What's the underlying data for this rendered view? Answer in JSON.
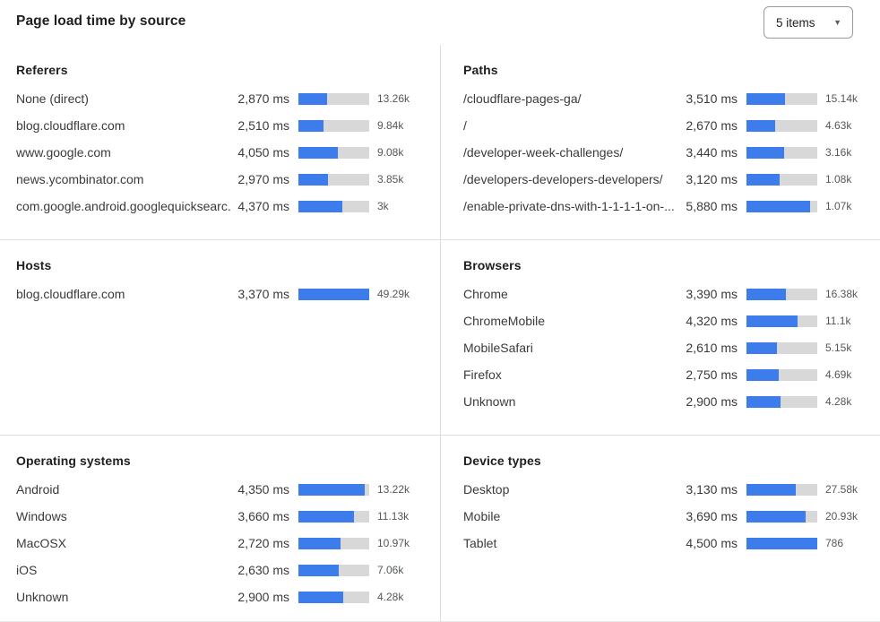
{
  "header": {
    "title": "Page load time by source",
    "items_select": {
      "value": "5 items"
    }
  },
  "colors": {
    "bar_fill": "#3c7ceb",
    "bar_track": "#d8d8d8",
    "divider": "#dcdee0"
  },
  "panels": [
    {
      "title": "Referers",
      "rows": [
        {
          "label": "None (direct)",
          "ms": "2,870 ms",
          "count": "13.26k",
          "pct": 41
        },
        {
          "label": "blog.cloudflare.com",
          "ms": "2,510 ms",
          "count": "9.84k",
          "pct": 35
        },
        {
          "label": "www.google.com",
          "ms": "4,050 ms",
          "count": "9.08k",
          "pct": 56
        },
        {
          "label": "news.ycombinator.com",
          "ms": "2,970 ms",
          "count": "3.85k",
          "pct": 42
        },
        {
          "label": "com.google.android.googlequicksearc...",
          "ms": "4,370 ms",
          "count": "3k",
          "pct": 62
        }
      ]
    },
    {
      "title": "Paths",
      "rows": [
        {
          "label": "/cloudflare-pages-ga/",
          "ms": "3,510 ms",
          "count": "15.14k",
          "pct": 54
        },
        {
          "label": "/",
          "ms": "2,670 ms",
          "count": "4.63k",
          "pct": 41
        },
        {
          "label": "/developer-week-challenges/",
          "ms": "3,440 ms",
          "count": "3.16k",
          "pct": 53
        },
        {
          "label": "/developers-developers-developers/",
          "ms": "3,120 ms",
          "count": "1.08k",
          "pct": 47
        },
        {
          "label": "/enable-private-dns-with-1-1-1-1-on-...",
          "ms": "5,880 ms",
          "count": "1.07k",
          "pct": 90
        }
      ]
    },
    {
      "title": "Hosts",
      "rows": [
        {
          "label": "blog.cloudflare.com",
          "ms": "3,370 ms",
          "count": "49.29k",
          "pct": 100
        }
      ]
    },
    {
      "title": "Browsers",
      "rows": [
        {
          "label": "Chrome",
          "ms": "3,390 ms",
          "count": "16.38k",
          "pct": 56
        },
        {
          "label": "ChromeMobile",
          "ms": "4,320 ms",
          "count": "11.1k",
          "pct": 72
        },
        {
          "label": "MobileSafari",
          "ms": "2,610 ms",
          "count": "5.15k",
          "pct": 43
        },
        {
          "label": "Firefox",
          "ms": "2,750 ms",
          "count": "4.69k",
          "pct": 46
        },
        {
          "label": "Unknown",
          "ms": "2,900 ms",
          "count": "4.28k",
          "pct": 48
        }
      ]
    },
    {
      "title": "Operating systems",
      "rows": [
        {
          "label": "Android",
          "ms": "4,350 ms",
          "count": "13.22k",
          "pct": 94
        },
        {
          "label": "Windows",
          "ms": "3,660 ms",
          "count": "11.13k",
          "pct": 79
        },
        {
          "label": "MacOSX",
          "ms": "2,720 ms",
          "count": "10.97k",
          "pct": 59
        },
        {
          "label": "iOS",
          "ms": "2,630 ms",
          "count": "7.06k",
          "pct": 57
        },
        {
          "label": "Unknown",
          "ms": "2,900 ms",
          "count": "4.28k",
          "pct": 63
        }
      ]
    },
    {
      "title": "Device types",
      "rows": [
        {
          "label": "Desktop",
          "ms": "3,130 ms",
          "count": "27.58k",
          "pct": 70
        },
        {
          "label": "Mobile",
          "ms": "3,690 ms",
          "count": "20.93k",
          "pct": 83
        },
        {
          "label": "Tablet",
          "ms": "4,500 ms",
          "count": "786",
          "pct": 100
        }
      ]
    }
  ],
  "chart_data": [
    {
      "type": "bar",
      "title": "Referers",
      "categories": [
        "None (direct)",
        "blog.cloudflare.com",
        "www.google.com",
        "news.ycombinator.com",
        "com.google.android.googlequicksearc..."
      ],
      "series": [
        {
          "name": "page_load_time_ms",
          "values": [
            2870,
            2510,
            4050,
            2970,
            4370
          ]
        },
        {
          "name": "count",
          "values": [
            13260,
            9840,
            9080,
            3850,
            3000
          ]
        }
      ]
    },
    {
      "type": "bar",
      "title": "Paths",
      "categories": [
        "/cloudflare-pages-ga/",
        "/",
        "/developer-week-challenges/",
        "/developers-developers-developers/",
        "/enable-private-dns-with-1-1-1-1-on-..."
      ],
      "series": [
        {
          "name": "page_load_time_ms",
          "values": [
            3510,
            2670,
            3440,
            3120,
            5880
          ]
        },
        {
          "name": "count",
          "values": [
            15140,
            4630,
            3160,
            1080,
            1070
          ]
        }
      ]
    },
    {
      "type": "bar",
      "title": "Hosts",
      "categories": [
        "blog.cloudflare.com"
      ],
      "series": [
        {
          "name": "page_load_time_ms",
          "values": [
            3370
          ]
        },
        {
          "name": "count",
          "values": [
            49290
          ]
        }
      ]
    },
    {
      "type": "bar",
      "title": "Browsers",
      "categories": [
        "Chrome",
        "ChromeMobile",
        "MobileSafari",
        "Firefox",
        "Unknown"
      ],
      "series": [
        {
          "name": "page_load_time_ms",
          "values": [
            3390,
            4320,
            2610,
            2750,
            2900
          ]
        },
        {
          "name": "count",
          "values": [
            16380,
            11100,
            5150,
            4690,
            4280
          ]
        }
      ]
    },
    {
      "type": "bar",
      "title": "Operating systems",
      "categories": [
        "Android",
        "Windows",
        "MacOSX",
        "iOS",
        "Unknown"
      ],
      "series": [
        {
          "name": "page_load_time_ms",
          "values": [
            4350,
            3660,
            2720,
            2630,
            2900
          ]
        },
        {
          "name": "count",
          "values": [
            13220,
            11130,
            10970,
            7060,
            4280
          ]
        }
      ]
    },
    {
      "type": "bar",
      "title": "Device types",
      "categories": [
        "Desktop",
        "Mobile",
        "Tablet"
      ],
      "series": [
        {
          "name": "page_load_time_ms",
          "values": [
            3130,
            3690,
            4500
          ]
        },
        {
          "name": "count",
          "values": [
            27580,
            20930,
            786
          ]
        }
      ]
    }
  ]
}
